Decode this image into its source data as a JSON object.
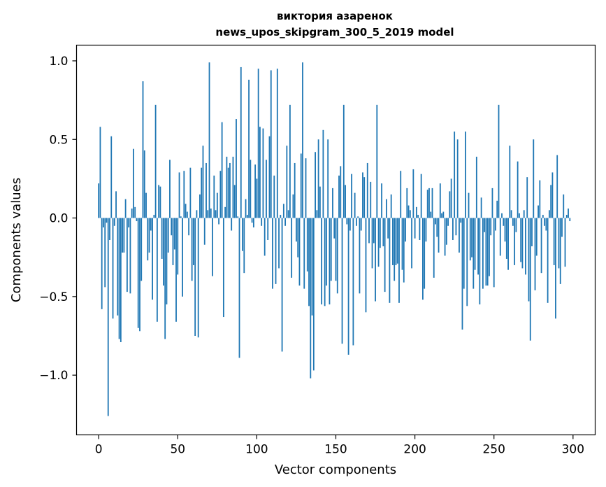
{
  "chart_data": {
    "type": "bar",
    "title": "виктория азаренок",
    "subtitle": "news_upos_skipgram_300_5_2019 model",
    "xlabel": "Vector components",
    "ylabel": "Components values",
    "xlim": [
      -14,
      314
    ],
    "ylim": [
      -1.38,
      1.1
    ],
    "xticks": [
      0,
      50,
      100,
      150,
      200,
      250,
      300
    ],
    "xtick_labels": [
      "0",
      "50",
      "100",
      "150",
      "200",
      "250",
      "300"
    ],
    "yticks": [
      -1.0,
      -0.5,
      0.0,
      0.5,
      1.0
    ],
    "ytick_labels": [
      "−1.0",
      "−0.5",
      "0.0",
      "0.5",
      "1.0"
    ],
    "grid": false,
    "color": "#1f77b4",
    "values": [
      0.22,
      0.58,
      -0.58,
      -0.06,
      -0.44,
      -0.03,
      -1.26,
      -0.14,
      0.52,
      -0.64,
      -0.05,
      0.17,
      -0.62,
      -0.77,
      -0.79,
      -0.22,
      -0.22,
      0.12,
      -0.47,
      -0.06,
      -0.48,
      0.06,
      0.44,
      0.07,
      -0.02,
      -0.7,
      -0.72,
      -0.4,
      0.87,
      0.43,
      0.16,
      -0.27,
      -0.22,
      -0.08,
      -0.52,
      0.02,
      0.72,
      -0.66,
      0.21,
      0.2,
      -0.26,
      -0.43,
      -0.77,
      -0.55,
      -0.22,
      0.37,
      -0.11,
      -0.3,
      -0.2,
      -0.66,
      -0.36,
      0.29,
      0.01,
      -0.5,
      0.3,
      0.09,
      0.04,
      -0.11,
      0.32,
      -0.4,
      -0.3,
      -0.75,
      0.05,
      -0.76,
      0.15,
      0.32,
      0.46,
      -0.17,
      0.35,
      0.05,
      0.99,
      0.06,
      -0.37,
      0.27,
      0.05,
      0.16,
      -0.04,
      0.3,
      0.61,
      -0.63,
      0.07,
      0.39,
      0.32,
      0.35,
      -0.08,
      0.39,
      0.21,
      0.63,
      0.01,
      -0.89,
      0.96,
      -0.21,
      -0.35,
      0.12,
      0.02,
      0.88,
      0.37,
      -0.03,
      -0.06,
      0.34,
      0.25,
      0.95,
      0.58,
      -0.05,
      0.57,
      -0.24,
      0.37,
      -0.14,
      0.52,
      0.94,
      -0.45,
      0.27,
      -0.42,
      0.95,
      -0.32,
      0.02,
      -0.85,
      0.09,
      -0.05,
      0.46,
      0.05,
      0.72,
      -0.38,
      0.15,
      0.35,
      -0.15,
      -0.25,
      -0.43,
      0.41,
      0.99,
      -0.45,
      0.38,
      -0.34,
      -0.56,
      -1.02,
      -0.62,
      -0.97,
      0.42,
      0.05,
      0.5,
      0.2,
      -0.55,
      0.56,
      -0.56,
      -0.43,
      0.5,
      -0.55,
      -0.4,
      0.19,
      -0.13,
      -0.4,
      -0.48,
      0.27,
      0.33,
      -0.8,
      0.72,
      0.21,
      -0.04,
      -0.87,
      -0.08,
      0.28,
      -0.81,
      0.16,
      -0.05,
      0.01,
      -0.48,
      -0.08,
      0.29,
      0.26,
      -0.6,
      0.35,
      -0.16,
      0.23,
      -0.32,
      -0.16,
      -0.53,
      0.72,
      -0.31,
      -0.19,
      0.22,
      -0.18,
      -0.47,
      0.12,
      -0.13,
      -0.54,
      0.15,
      -0.3,
      -0.4,
      -0.3,
      -0.29,
      -0.54,
      0.3,
      -0.33,
      -0.41,
      -0.15,
      0.19,
      0.08,
      0.05,
      -0.32,
      0.31,
      -0.13,
      0.07,
      0.02,
      -0.14,
      0.28,
      -0.52,
      -0.45,
      -0.15,
      0.18,
      0.19,
      0.04,
      0.19,
      -0.38,
      -0.04,
      -0.12,
      -0.22,
      0.22,
      0.03,
      0.04,
      -0.24,
      -0.17,
      -0.05,
      0.17,
      0.25,
      -0.14,
      0.55,
      -0.11,
      0.5,
      -0.22,
      -0.03,
      -0.71,
      -0.45,
      0.55,
      -0.56,
      0.16,
      -0.27,
      -0.25,
      -0.45,
      -0.33,
      0.39,
      -0.36,
      -0.55,
      0.13,
      -0.45,
      -0.09,
      -0.43,
      -0.43,
      -0.37,
      -0.11,
      0.19,
      -0.44,
      -0.08,
      0.11,
      0.72,
      -0.24,
      0.03,
      -0.05,
      -0.15,
      -0.26,
      -0.33,
      0.46,
      0.05,
      -0.05,
      -0.3,
      -0.09,
      0.36,
      0.03,
      -0.28,
      -0.32,
      0.05,
      -0.36,
      0.26,
      -0.53,
      -0.78,
      -0.18,
      0.5,
      -0.46,
      -0.24,
      0.08,
      0.24,
      -0.35,
      0.02,
      -0.05,
      -0.08,
      -0.54,
      0.05,
      0.21,
      0.29,
      -0.3,
      -0.64,
      0.4,
      -0.32,
      -0.42,
      -0.12,
      0.15,
      -0.31,
      0.02,
      0.06,
      -0.02
    ]
  }
}
